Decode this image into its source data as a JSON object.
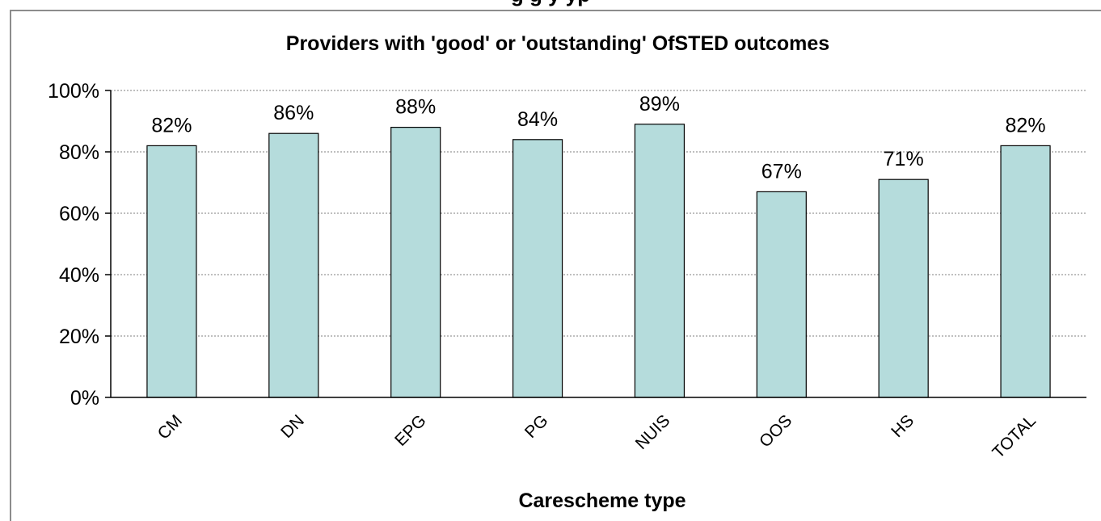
{
  "page": {
    "heading": "g                                     g                    y                    yp"
  },
  "chart_data": {
    "type": "bar",
    "title": "Providers with 'good' or 'outstanding' OfSTED outcomes",
    "xlabel": "Carescheme type",
    "ylabel": "",
    "categories": [
      "CM",
      "DN",
      "EPG",
      "PG",
      "NUIS",
      "OOS",
      "HS",
      "TOTAL"
    ],
    "values": [
      82,
      86,
      88,
      84,
      89,
      67,
      71,
      82
    ],
    "value_labels": [
      "82%",
      "86%",
      "88%",
      "84%",
      "89%",
      "67%",
      "71%",
      "82%"
    ],
    "ylim": [
      0,
      100
    ],
    "yticks": [
      0,
      20,
      40,
      60,
      80,
      100
    ],
    "ytick_labels": [
      "0%",
      "20%",
      "40%",
      "60%",
      "80%",
      "100%"
    ],
    "grid": true,
    "legend": "none",
    "colors": {
      "bar_fill": "#b5dcdc",
      "bar_stroke": "#000000",
      "grid": "#7f7f7f",
      "axis": "#000000",
      "frame": "#8c8c8c"
    }
  }
}
